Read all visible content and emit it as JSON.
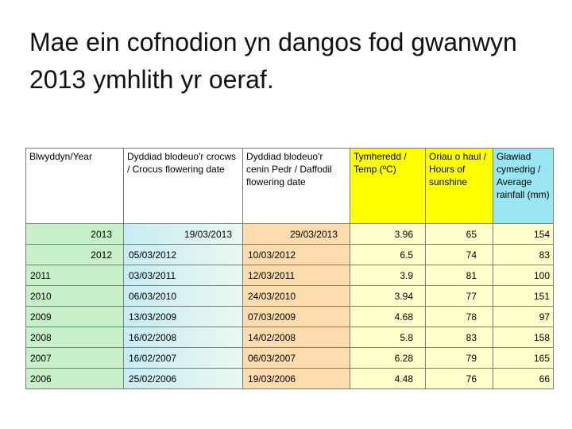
{
  "title": "Mae ein cofnodion yn dangos fod gwanwyn 2013 ymhlith yr oeraf.",
  "table": {
    "headers": [
      "Blwyddyn/Year",
      "Dyddiad blodeuo'r crocws / Crocus flowering date",
      "Dyddiad blodeuo'r cenin Pedr / Daffodil flowering date",
      "Tymheredd / Temp (ºC)",
      "Oriau o haul / Hours of sunshine",
      "Glawiad cymedrig / Average rainfall (mm)"
    ],
    "rows": [
      [
        "2013",
        "19/03/2013",
        "29/03/2013",
        "3.96",
        "65",
        "154"
      ],
      [
        "2012",
        "05/03/2012",
        "10/03/2012",
        "6.5",
        "74",
        "83"
      ],
      [
        "2011",
        "03/03/2011",
        "12/03/2011",
        "3.9",
        "81",
        "100"
      ],
      [
        "2010",
        "06/03/2010",
        "24/03/2010",
        "3.94",
        "77",
        "151"
      ],
      [
        "2009",
        "13/03/2009",
        "07/03/2009",
        "4.68",
        "78",
        "97"
      ],
      [
        "2008",
        "16/02/2008",
        "14/02/2008",
        "5.8",
        "83",
        "158"
      ],
      [
        "2007",
        "16/02/2007",
        "06/03/2007",
        "6.28",
        "79",
        "165"
      ],
      [
        "2006",
        "25/02/2006",
        "19/03/2006",
        "4.48",
        "76",
        "66"
      ]
    ]
  },
  "colors": {
    "year_cell": "#c8f0c8",
    "daffodil_cell": "#ffdcae",
    "temp_sun_rain_cell": "#ffffcc",
    "temp_sun_header": "#ffff00",
    "rain_header": "#99e6f2"
  }
}
